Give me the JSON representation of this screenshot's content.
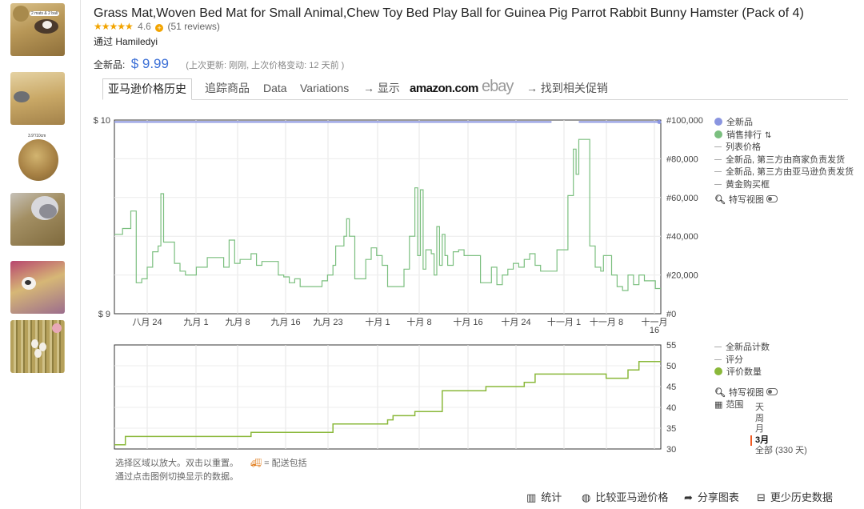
{
  "product": {
    "title": "Grass Mat,Woven Bed Mat for Small Animal,Chew Toy Bed Play Ball for Guinea Pig Parrot Rabbit Bunny Hamster (Pack of 4)",
    "rating_value": "4.6",
    "reviews": "(51 reviews)",
    "byline": "通过 Hamiledyi",
    "price_label": "全新品:",
    "price": "$ 9.99",
    "update_info": "(上次更新:  刚刚, 上次价格变动: 12 天前 )"
  },
  "thumbnails": [
    "thumb-grass-mat-guinea-pig",
    "thumb-woven-mat-chinchilla",
    "thumb-grass-ball",
    "thumb-rabbit-on-mat",
    "thumb-hamster-on-mat",
    "thumb-mat-with-eggs"
  ],
  "thumb3_label": "3.9\"/10cm",
  "thumb1_badge": "2 mats & 2 ball",
  "tabs": {
    "history": "亚马逊价格历史",
    "track": "追踪商品",
    "data": "Data",
    "variations": "Variations",
    "arrow1": "→ 显示",
    "amazon": "amazon.com",
    "ebay": "ebay",
    "arrow2": "→ 找到相关促销"
  },
  "legend_top": {
    "new": "全新品",
    "rank": "销售排行",
    "list": "列表价格",
    "new_3p_merchant": "全新品, 第三方由商家负责发货",
    "new_3p_amazon": "全新品, 第三方由亚马逊负责发货",
    "buybox": "黄金购买框",
    "closeup": "特写视图"
  },
  "legend_bottom": {
    "new_count": "全新品计数",
    "rating": "评分",
    "review_count": "评价数量",
    "closeup": "特写视图",
    "range": "范围",
    "ranges": [
      "天",
      "周",
      "月",
      "3月"
    ],
    "all": "全部 (330 天)"
  },
  "hints": {
    "line1": "选择区域以放大。双击以重置。",
    "shipping": "= 配送包括",
    "line2": "通过点击图例切换显示的数据。"
  },
  "footer": {
    "stats": "统计",
    "compare": "比较亚马逊价格",
    "share": "分享图表",
    "less_history": "更少历史数据"
  },
  "colors": {
    "price_blue": "#3b6fd6",
    "new_price_line": "#8a95e0",
    "rank_green": "#7bbf7f",
    "review_green": "#8ab83a"
  },
  "chart_data": [
    {
      "type": "line",
      "title": "",
      "x_ticks": [
        "八月 24",
        "九月 1",
        "九月 8",
        "九月 16",
        "九月 23",
        "十月 1",
        "十月 8",
        "十月 16",
        "十月 24",
        "十一月 1",
        "十一月 8",
        "十一月 16"
      ],
      "y_left_ticks": [
        "$ 10",
        "$ 9"
      ],
      "y_right_ticks": [
        "#100,000",
        "#80,000",
        "#60,000",
        "#40,000",
        "#20,000",
        "#0"
      ],
      "ylim_left": [
        9,
        10
      ],
      "ylim_right": [
        0,
        100000
      ],
      "series": [
        {
          "name": "全新品",
          "axis": "left",
          "segments": [
            [
              [
                0,
                9.99
              ],
              [
                80,
                9.99
              ]
            ],
            [
              [
                85,
                9.99
              ],
              [
                100,
                9.99
              ]
            ]
          ]
        },
        {
          "name": "销售排行",
          "axis": "right",
          "points": [
            [
              0,
              41000
            ],
            [
              1.5,
              41000
            ],
            [
              1.5,
              44000
            ],
            [
              3,
              44000
            ],
            [
              3,
              53000
            ],
            [
              4,
              53000
            ],
            [
              4,
              16000
            ],
            [
              5,
              16000
            ],
            [
              5,
              18000
            ],
            [
              6,
              18000
            ],
            [
              6,
              24000
            ],
            [
              7,
              24000
            ],
            [
              7,
              32000
            ],
            [
              8,
              32000
            ],
            [
              8,
              35000
            ],
            [
              8.5,
              35000
            ],
            [
              8.5,
              62000
            ],
            [
              9,
              62000
            ],
            [
              9,
              37000
            ],
            [
              11,
              37000
            ],
            [
              11,
              26000
            ],
            [
              12,
              26000
            ],
            [
              12,
              22000
            ],
            [
              13,
              22000
            ],
            [
              13,
              20000
            ],
            [
              15,
              20000
            ],
            [
              15,
              24000
            ],
            [
              17,
              24000
            ],
            [
              17,
              29000
            ],
            [
              20,
              29000
            ],
            [
              20,
              24000
            ],
            [
              21,
              24000
            ],
            [
              21,
              38000
            ],
            [
              22,
              38000
            ],
            [
              22,
              26000
            ],
            [
              23,
              26000
            ],
            [
              23,
              28000
            ],
            [
              25,
              28000
            ],
            [
              25,
              31000
            ],
            [
              26,
              31000
            ],
            [
              26,
              25000
            ],
            [
              27,
              25000
            ],
            [
              27,
              27000
            ],
            [
              30,
              27000
            ],
            [
              30,
              20000
            ],
            [
              31,
              20000
            ],
            [
              31,
              19000
            ],
            [
              32,
              19000
            ],
            [
              32,
              16000
            ],
            [
              33,
              16000
            ],
            [
              33,
              18000
            ],
            [
              34,
              18000
            ],
            [
              34,
              14000
            ],
            [
              38,
              14000
            ],
            [
              38,
              17000
            ],
            [
              39,
              17000
            ],
            [
              39,
              20000
            ],
            [
              40,
              20000
            ],
            [
              40,
              25000
            ],
            [
              40.5,
              25000
            ],
            [
              40.5,
              35000
            ],
            [
              42,
              35000
            ],
            [
              42,
              40000
            ],
            [
              42.5,
              40000
            ],
            [
              42.5,
              49000
            ],
            [
              43,
              49000
            ],
            [
              43,
              40000
            ],
            [
              44,
              40000
            ],
            [
              44,
              18000
            ],
            [
              46,
              18000
            ],
            [
              46,
              28000
            ],
            [
              47,
              28000
            ],
            [
              47,
              34000
            ],
            [
              48,
              34000
            ],
            [
              48,
              30000
            ],
            [
              49,
              30000
            ],
            [
              49,
              25000
            ],
            [
              50,
              25000
            ],
            [
              50,
              14000
            ],
            [
              53,
              14000
            ],
            [
              53,
              23000
            ],
            [
              54,
              23000
            ],
            [
              54,
              40000
            ],
            [
              55,
              40000
            ],
            [
              55,
              65000
            ],
            [
              55.5,
              65000
            ],
            [
              55.5,
              30000
            ],
            [
              56,
              30000
            ],
            [
              56,
              64000
            ],
            [
              56.5,
              64000
            ],
            [
              56.5,
              23000
            ],
            [
              57,
              23000
            ],
            [
              57,
              33000
            ],
            [
              58,
              33000
            ],
            [
              58,
              31000
            ],
            [
              58.5,
              31000
            ],
            [
              58.5,
              20000
            ],
            [
              59,
              20000
            ],
            [
              59,
              45000
            ],
            [
              59.5,
              45000
            ],
            [
              59.5,
              25000
            ],
            [
              60,
              25000
            ],
            [
              60,
              41000
            ],
            [
              60.5,
              41000
            ],
            [
              60.5,
              30000
            ],
            [
              61,
              30000
            ],
            [
              61,
              25000
            ],
            [
              62,
              25000
            ],
            [
              62,
              32000
            ],
            [
              63,
              32000
            ],
            [
              63,
              33000
            ],
            [
              64,
              33000
            ],
            [
              64,
              30000
            ],
            [
              67,
              30000
            ],
            [
              67,
              16000
            ],
            [
              69,
              16000
            ],
            [
              69,
              24000
            ],
            [
              70,
              24000
            ],
            [
              70,
              15000
            ],
            [
              71,
              15000
            ],
            [
              71,
              20000
            ],
            [
              72,
              20000
            ],
            [
              72,
              23000
            ],
            [
              73,
              23000
            ],
            [
              73,
              26000
            ],
            [
              74,
              26000
            ],
            [
              74,
              24000
            ],
            [
              75,
              24000
            ],
            [
              75,
              28000
            ],
            [
              76,
              28000
            ],
            [
              76,
              31000
            ],
            [
              77,
              31000
            ],
            [
              77,
              25000
            ],
            [
              78,
              25000
            ],
            [
              78,
              22000
            ],
            [
              81,
              22000
            ],
            [
              81,
              33000
            ],
            [
              83,
              33000
            ],
            [
              83,
              61000
            ],
            [
              84,
              61000
            ],
            [
              84,
              85000
            ],
            [
              84.5,
              85000
            ],
            [
              84.5,
              72000
            ],
            [
              85,
              72000
            ],
            [
              85,
              90000
            ],
            [
              87,
              90000
            ],
            [
              87,
              35000
            ],
            [
              88,
              35000
            ],
            [
              88,
              24000
            ],
            [
              89,
              24000
            ],
            [
              89,
              22000
            ],
            [
              89.5,
              22000
            ],
            [
              89.5,
              30000
            ],
            [
              91,
              30000
            ],
            [
              91,
              20000
            ],
            [
              92,
              20000
            ],
            [
              92,
              14000
            ],
            [
              93,
              14000
            ],
            [
              93,
              12000
            ],
            [
              94,
              12000
            ],
            [
              94,
              20000
            ],
            [
              95,
              20000
            ],
            [
              95,
              15000
            ],
            [
              96,
              15000
            ],
            [
              96,
              20000
            ],
            [
              97,
              20000
            ],
            [
              97,
              17000
            ],
            [
              99,
              17000
            ],
            [
              99,
              13000
            ],
            [
              100,
              13000
            ]
          ]
        }
      ]
    },
    {
      "type": "line",
      "title": "",
      "y_right_ticks": [
        "55",
        "50",
        "45",
        "40",
        "35",
        "30"
      ],
      "ylim": [
        30,
        55
      ],
      "series": [
        {
          "name": "评价数量",
          "points": [
            [
              0,
              31
            ],
            [
              2,
              31
            ],
            [
              2,
              33
            ],
            [
              25,
              33
            ],
            [
              25,
              34
            ],
            [
              40,
              34
            ],
            [
              40,
              36
            ],
            [
              50,
              36
            ],
            [
              50,
              37
            ],
            [
              51,
              37
            ],
            [
              51,
              38
            ],
            [
              55,
              38
            ],
            [
              55,
              39
            ],
            [
              60,
              39
            ],
            [
              60,
              44
            ],
            [
              68,
              44
            ],
            [
              68,
              45
            ],
            [
              75,
              45
            ],
            [
              75,
              46
            ],
            [
              77,
              46
            ],
            [
              77,
              48
            ],
            [
              90,
              48
            ],
            [
              90,
              47
            ],
            [
              94,
              47
            ],
            [
              94,
              49
            ],
            [
              96,
              49
            ],
            [
              96,
              51
            ],
            [
              100,
              51
            ]
          ]
        }
      ]
    }
  ]
}
